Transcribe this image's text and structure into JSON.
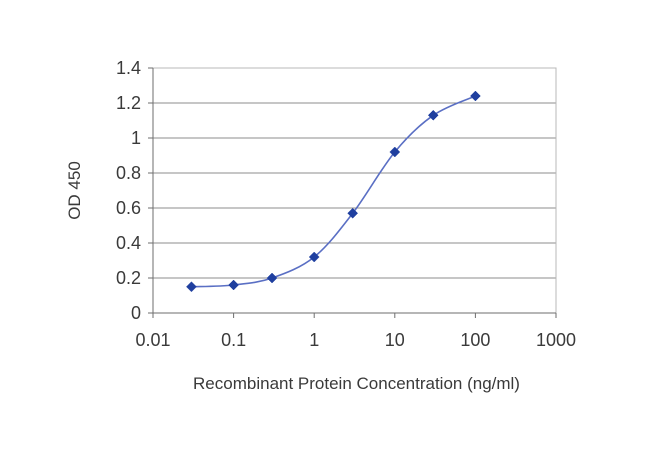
{
  "chart_data": {
    "type": "scatter",
    "title": "",
    "xlabel": "Recombinant Protein Concentration (ng/ml)",
    "ylabel": "OD 450",
    "xscale": "log",
    "xlim": [
      0.01,
      1000
    ],
    "ylim": [
      0,
      1.4
    ],
    "x_ticks": [
      0.01,
      0.1,
      1,
      10,
      100,
      1000
    ],
    "x_tick_labels": [
      "0.01",
      "0.1",
      "1",
      "10",
      "100",
      "1000"
    ],
    "y_ticks": [
      0,
      0.2,
      0.4,
      0.6,
      0.8,
      1,
      1.2,
      1.4
    ],
    "y_tick_labels": [
      "0",
      "0.2",
      "0.4",
      "0.6",
      "0.8",
      "1",
      "1.2",
      "1.4"
    ],
    "grid": "horizontal",
    "legend": "none",
    "series": [
      {
        "x": [
          0.03,
          0.1,
          0.3,
          1,
          3,
          10,
          30,
          100
        ],
        "y": [
          0.15,
          0.16,
          0.2,
          0.32,
          0.57,
          0.92,
          1.13,
          1.24
        ],
        "marker": "diamond",
        "line": "smooth",
        "color": "#1f3f9f",
        "line_color": "#5a6fc4"
      }
    ]
  }
}
